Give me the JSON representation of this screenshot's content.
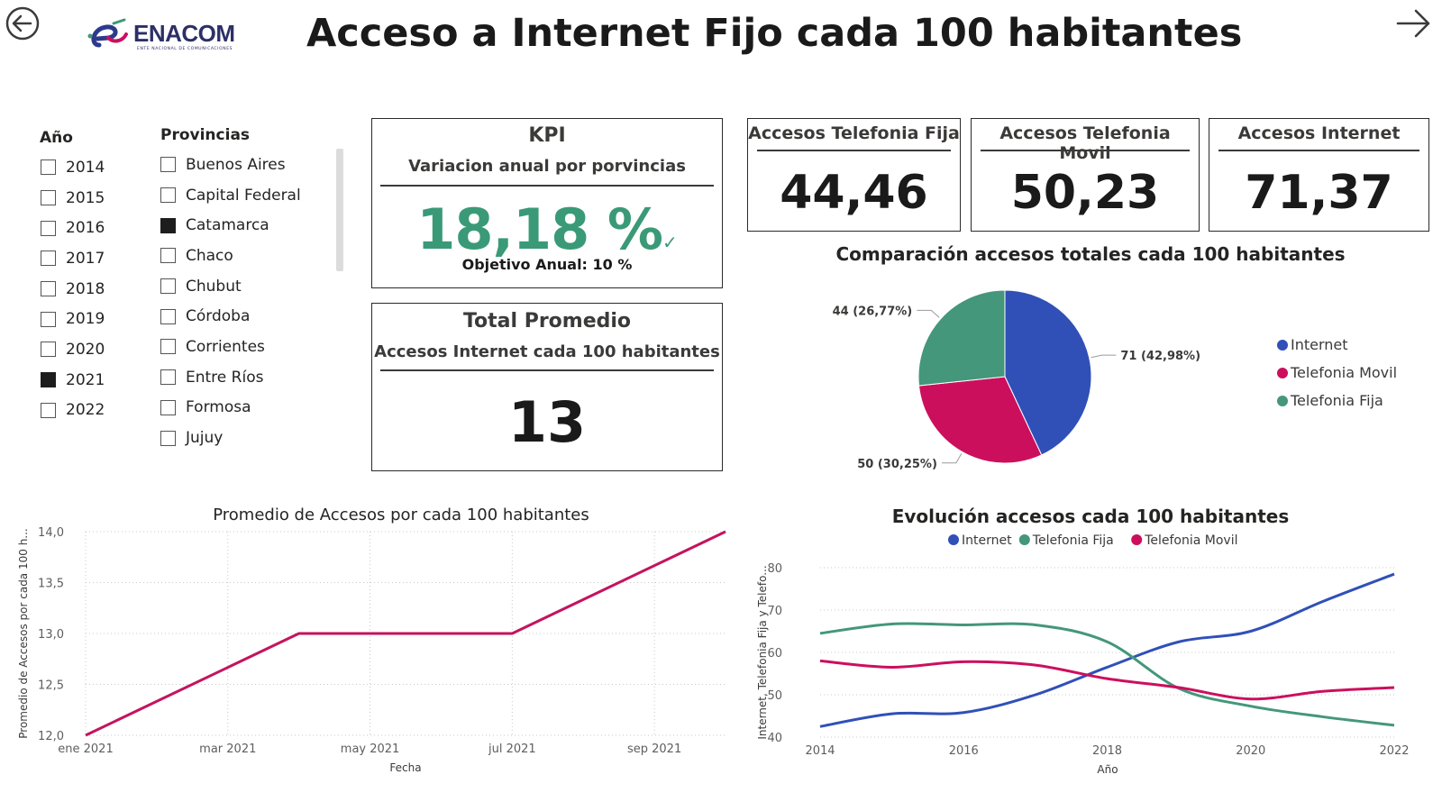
{
  "header": {
    "title": "Acceso a Internet Fijo cada 100 habitantes",
    "logo_text": "ENACOM",
    "logo_tagline": "ENTE NACIONAL DE COMUNICACIONES",
    "back_icon": "arrow-left-circle-icon",
    "next_icon": "arrow-right-icon"
  },
  "year_slicer": {
    "title": "Año",
    "items": [
      {
        "label": "2014",
        "checked": false
      },
      {
        "label": "2015",
        "checked": false
      },
      {
        "label": "2016",
        "checked": false
      },
      {
        "label": "2017",
        "checked": false
      },
      {
        "label": "2018",
        "checked": false
      },
      {
        "label": "2019",
        "checked": false
      },
      {
        "label": "2020",
        "checked": false
      },
      {
        "label": "2021",
        "checked": true
      },
      {
        "label": "2022",
        "checked": false
      }
    ]
  },
  "province_slicer": {
    "title": "Provincias",
    "items": [
      {
        "label": "Buenos Aires",
        "checked": false
      },
      {
        "label": "Capital Federal",
        "checked": false
      },
      {
        "label": "Catamarca",
        "checked": true
      },
      {
        "label": "Chaco",
        "checked": false
      },
      {
        "label": "Chubut",
        "checked": false
      },
      {
        "label": "Córdoba",
        "checked": false
      },
      {
        "label": "Corrientes",
        "checked": false
      },
      {
        "label": "Entre Ríos",
        "checked": false
      },
      {
        "label": "Formosa",
        "checked": false
      },
      {
        "label": "Jujuy",
        "checked": false
      }
    ]
  },
  "kpi_card": {
    "title": "KPI",
    "subtitle": "Variacion anual por porvincias",
    "value": "18,18 %",
    "target": "Objetivo Anual: 10 %",
    "status_icon": "checkmark-icon",
    "color": "#3a9a78"
  },
  "avg_card": {
    "title": "Total Promedio",
    "subtitle": "Accesos Internet cada 100 habitantes",
    "value": "13"
  },
  "stat_cards": {
    "fija": {
      "title": "Accesos Telefonia Fija",
      "value": "44,46"
    },
    "movil": {
      "title": "Accesos Telefonia Movil",
      "value": "50,23"
    },
    "internet": {
      "title": "Accesos Internet",
      "value": "71,37"
    }
  },
  "colors": {
    "internet": "#3050b8",
    "movil": "#cc0f5d",
    "fija": "#44977a",
    "line1": "#c3145f"
  },
  "chart_data": [
    {
      "type": "pie",
      "title": "Comparación accesos totales cada 100 habitantes",
      "slices": [
        {
          "name": "Internet",
          "value": 71,
          "label": "71 (42,98%)",
          "color": "#3050b8"
        },
        {
          "name": "Telefonia Movil",
          "value": 50,
          "label": "50 (30,25%)",
          "color": "#cc0f5d"
        },
        {
          "name": "Telefonia Fija",
          "value": 44,
          "label": "44 (26,77%)",
          "color": "#44977a"
        }
      ],
      "legend": [
        "Internet",
        "Telefonia Movil",
        "Telefonia Fija"
      ],
      "legend_position": "right"
    },
    {
      "type": "line",
      "title": "Promedio de Accesos por cada 100 habitantes",
      "xlabel": "Fecha",
      "ylabel": "Promedio de Accesos por cada 100 h...",
      "x": [
        "2021-01",
        "2021-04",
        "2021-07",
        "2021-10"
      ],
      "x_tick_labels": [
        "ene 2021",
        "mar 2021",
        "may 2021",
        "jul 2021",
        "sep 2021"
      ],
      "x_tick_values": [
        "2021-01",
        "2021-03",
        "2021-05",
        "2021-07",
        "2021-09"
      ],
      "values": [
        12.0,
        13.0,
        13.0,
        14.0
      ],
      "ylim": [
        12.0,
        14.0
      ],
      "y_ticks": [
        "12,0",
        "12,5",
        "13,0",
        "13,5",
        "14,0"
      ],
      "grid": true,
      "color": "#c3145f"
    },
    {
      "type": "line",
      "title": "Evolución accesos cada 100 habitantes",
      "xlabel": "Año",
      "ylabel": "Internet, Telefonia Fija y Telefo...",
      "x": [
        2014,
        2015,
        2016,
        2017,
        2018,
        2019,
        2020,
        2021,
        2022
      ],
      "x_ticks": [
        "2014",
        "2016",
        "2018",
        "2020",
        "2022"
      ],
      "ylim": [
        40,
        80
      ],
      "y_ticks": [
        "40",
        "50",
        "60",
        "70",
        "80"
      ],
      "grid": true,
      "legend_position": "top",
      "series": [
        {
          "name": "Internet",
          "color": "#3050b8",
          "values": [
            42.5,
            45.5,
            45.8,
            50,
            56.5,
            62.5,
            65,
            72,
            78.5
          ]
        },
        {
          "name": "Telefonia Fija",
          "color": "#44977a",
          "values": [
            64.5,
            66.7,
            66.5,
            66.5,
            62.5,
            51.5,
            47.3,
            44.8,
            42.8
          ]
        },
        {
          "name": "Telefonia Movil",
          "color": "#cc0f5d",
          "values": [
            58,
            56.5,
            57.8,
            57,
            53.8,
            51.7,
            49,
            50.8,
            51.7
          ]
        }
      ]
    }
  ]
}
